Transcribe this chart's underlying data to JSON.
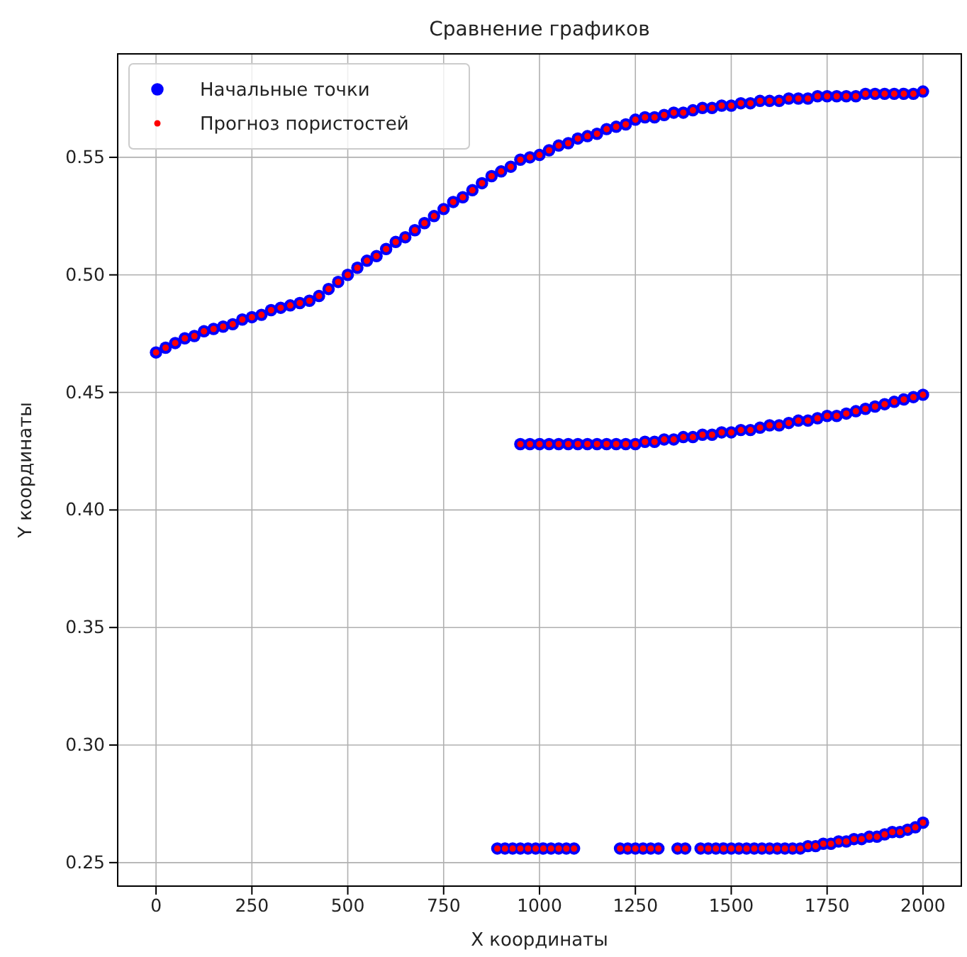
{
  "chart_data": {
    "type": "scatter",
    "title": "Сравнение графиков",
    "xlabel": "X координаты",
    "ylabel": "Y координаты",
    "xlim": [
      -100,
      2100
    ],
    "xticks": [
      0,
      250,
      500,
      750,
      1000,
      1250,
      1500,
      1750,
      2000
    ],
    "ylim": [
      0.24,
      0.594
    ],
    "yticks": [
      0.25,
      {
        "value": 0.3,
        "label": "0.30"
      },
      0.35,
      {
        "value": 0.4,
        "label": "0.40"
      },
      0.45,
      {
        "value": 0.5,
        "label": "0.50"
      },
      0.55
    ],
    "grid": true,
    "legend": "top left",
    "marker": "circle",
    "series": [
      {
        "name": "Начальные точки",
        "color": "#0000ff",
        "x": [
          0,
          25,
          50,
          75,
          100,
          125,
          150,
          175,
          200,
          225,
          250,
          275,
          300,
          325,
          350,
          375,
          400,
          425,
          450,
          475,
          500,
          525,
          550,
          575,
          600,
          625,
          650,
          675,
          700,
          725,
          750,
          775,
          800,
          825,
          850,
          875,
          900,
          925,
          950,
          975,
          1000,
          1025,
          1050,
          1075,
          1100,
          1125,
          1150,
          1175,
          1200,
          1225,
          1250,
          1275,
          1300,
          1325,
          1350,
          1375,
          1400,
          1425,
          1450,
          1475,
          1500,
          1525,
          1550,
          1575,
          1600,
          1625,
          1650,
          1675,
          1700,
          1725,
          1750,
          1775,
          1800,
          1825,
          1850,
          1875,
          1900,
          1925,
          1950,
          1975,
          2000,
          950,
          975,
          1000,
          1025,
          1050,
          1075,
          1100,
          1125,
          1150,
          1175,
          1200,
          1225,
          1250,
          1275,
          1300,
          1325,
          1350,
          1375,
          1400,
          1425,
          1450,
          1475,
          1500,
          1525,
          1550,
          1575,
          1600,
          1625,
          1650,
          1675,
          1700,
          1725,
          1750,
          1775,
          1800,
          1825,
          1850,
          1875,
          1900,
          1925,
          1950,
          1975,
          2000,
          890,
          910,
          930,
          950,
          970,
          990,
          1010,
          1030,
          1050,
          1070,
          1090,
          1210,
          1230,
          1250,
          1270,
          1290,
          1310,
          1360,
          1380,
          1420,
          1440,
          1460,
          1480,
          1500,
          1520,
          1540,
          1560,
          1580,
          1600,
          1620,
          1640,
          1660,
          1680,
          1700,
          1720,
          1740,
          1760,
          1780,
          1800,
          1820,
          1840,
          1860,
          1880,
          1900,
          1920,
          1940,
          1960,
          1980,
          2000
        ],
        "values": [
          0.467,
          0.469,
          0.471,
          0.473,
          0.474,
          0.476,
          0.477,
          0.478,
          0.479,
          0.481,
          0.482,
          0.483,
          0.485,
          0.486,
          0.487,
          0.488,
          0.489,
          0.491,
          0.494,
          0.497,
          0.5,
          0.503,
          0.506,
          0.508,
          0.511,
          0.514,
          0.516,
          0.519,
          0.522,
          0.525,
          0.528,
          0.531,
          0.533,
          0.536,
          0.539,
          0.542,
          0.544,
          0.546,
          0.549,
          0.55,
          0.551,
          0.553,
          0.555,
          0.556,
          0.558,
          0.559,
          0.56,
          0.562,
          0.563,
          0.564,
          0.566,
          0.567,
          0.567,
          0.568,
          0.569,
          0.569,
          0.57,
          0.571,
          0.571,
          0.572,
          0.572,
          0.573,
          0.573,
          0.574,
          0.574,
          0.574,
          0.575,
          0.575,
          0.575,
          0.576,
          0.576,
          0.576,
          0.576,
          0.576,
          0.577,
          0.577,
          0.577,
          0.577,
          0.577,
          0.577,
          0.578,
          0.428,
          0.428,
          0.428,
          0.428,
          0.428,
          0.428,
          0.428,
          0.428,
          0.428,
          0.428,
          0.428,
          0.428,
          0.428,
          0.429,
          0.429,
          0.43,
          0.43,
          0.431,
          0.431,
          0.432,
          0.432,
          0.433,
          0.433,
          0.434,
          0.434,
          0.435,
          0.436,
          0.436,
          0.437,
          0.438,
          0.438,
          0.439,
          0.44,
          0.44,
          0.441,
          0.442,
          0.443,
          0.444,
          0.445,
          0.446,
          0.447,
          0.448,
          0.449,
          0.256,
          0.256,
          0.256,
          0.256,
          0.256,
          0.256,
          0.256,
          0.256,
          0.256,
          0.256,
          0.256,
          0.256,
          0.256,
          0.256,
          0.256,
          0.256,
          0.256,
          0.256,
          0.256,
          0.256,
          0.256,
          0.256,
          0.256,
          0.256,
          0.256,
          0.256,
          0.256,
          0.256,
          0.256,
          0.256,
          0.256,
          0.256,
          0.256,
          0.257,
          0.257,
          0.258,
          0.258,
          0.259,
          0.259,
          0.26,
          0.26,
          0.261,
          0.261,
          0.262,
          0.263,
          0.263,
          0.264,
          0.265,
          0.267
        ]
      },
      {
        "name": "Прогноз пористостей",
        "color": "#ff0000",
        "x": [
          0,
          25,
          50,
          75,
          100,
          125,
          150,
          175,
          200,
          225,
          250,
          275,
          300,
          325,
          350,
          375,
          400,
          425,
          450,
          475,
          500,
          525,
          550,
          575,
          600,
          625,
          650,
          675,
          700,
          725,
          750,
          775,
          800,
          825,
          850,
          875,
          900,
          925,
          950,
          975,
          1000,
          1025,
          1050,
          1075,
          1100,
          1125,
          1150,
          1175,
          1200,
          1225,
          1250,
          1275,
          1300,
          1325,
          1350,
          1375,
          1400,
          1425,
          1450,
          1475,
          1500,
          1525,
          1550,
          1575,
          1600,
          1625,
          1650,
          1675,
          1700,
          1725,
          1750,
          1775,
          1800,
          1825,
          1850,
          1875,
          1900,
          1925,
          1950,
          1975,
          2000,
          950,
          975,
          1000,
          1025,
          1050,
          1075,
          1100,
          1125,
          1150,
          1175,
          1200,
          1225,
          1250,
          1275,
          1300,
          1325,
          1350,
          1375,
          1400,
          1425,
          1450,
          1475,
          1500,
          1525,
          1550,
          1575,
          1600,
          1625,
          1650,
          1675,
          1700,
          1725,
          1750,
          1775,
          1800,
          1825,
          1850,
          1875,
          1900,
          1925,
          1950,
          1975,
          2000,
          890,
          910,
          930,
          950,
          970,
          990,
          1010,
          1030,
          1050,
          1070,
          1090,
          1210,
          1230,
          1250,
          1270,
          1290,
          1310,
          1360,
          1380,
          1420,
          1440,
          1460,
          1480,
          1500,
          1520,
          1540,
          1560,
          1580,
          1600,
          1620,
          1640,
          1660,
          1680,
          1700,
          1720,
          1740,
          1760,
          1780,
          1800,
          1820,
          1840,
          1860,
          1880,
          1900,
          1920,
          1940,
          1960,
          1980,
          2000
        ],
        "values": [
          0.467,
          0.469,
          0.471,
          0.473,
          0.474,
          0.476,
          0.477,
          0.478,
          0.479,
          0.481,
          0.482,
          0.483,
          0.485,
          0.486,
          0.487,
          0.488,
          0.489,
          0.491,
          0.494,
          0.497,
          0.5,
          0.503,
          0.506,
          0.508,
          0.511,
          0.514,
          0.516,
          0.519,
          0.522,
          0.525,
          0.528,
          0.531,
          0.533,
          0.536,
          0.539,
          0.542,
          0.544,
          0.546,
          0.549,
          0.55,
          0.551,
          0.553,
          0.555,
          0.556,
          0.558,
          0.559,
          0.56,
          0.562,
          0.563,
          0.564,
          0.566,
          0.567,
          0.567,
          0.568,
          0.569,
          0.569,
          0.57,
          0.571,
          0.571,
          0.572,
          0.572,
          0.573,
          0.573,
          0.574,
          0.574,
          0.574,
          0.575,
          0.575,
          0.575,
          0.576,
          0.576,
          0.576,
          0.576,
          0.576,
          0.577,
          0.577,
          0.577,
          0.577,
          0.577,
          0.577,
          0.578,
          0.428,
          0.428,
          0.428,
          0.428,
          0.428,
          0.428,
          0.428,
          0.428,
          0.428,
          0.428,
          0.428,
          0.428,
          0.428,
          0.429,
          0.429,
          0.43,
          0.43,
          0.431,
          0.431,
          0.432,
          0.432,
          0.433,
          0.433,
          0.434,
          0.434,
          0.435,
          0.436,
          0.436,
          0.437,
          0.438,
          0.438,
          0.439,
          0.44,
          0.44,
          0.441,
          0.442,
          0.443,
          0.444,
          0.445,
          0.446,
          0.447,
          0.448,
          0.449,
          0.256,
          0.256,
          0.256,
          0.256,
          0.256,
          0.256,
          0.256,
          0.256,
          0.256,
          0.256,
          0.256,
          0.256,
          0.256,
          0.256,
          0.256,
          0.256,
          0.256,
          0.256,
          0.256,
          0.256,
          0.256,
          0.256,
          0.256,
          0.256,
          0.256,
          0.256,
          0.256,
          0.256,
          0.256,
          0.256,
          0.256,
          0.256,
          0.256,
          0.257,
          0.257,
          0.258,
          0.258,
          0.259,
          0.259,
          0.26,
          0.26,
          0.261,
          0.261,
          0.262,
          0.263,
          0.263,
          0.264,
          0.265,
          0.267
        ]
      }
    ]
  }
}
